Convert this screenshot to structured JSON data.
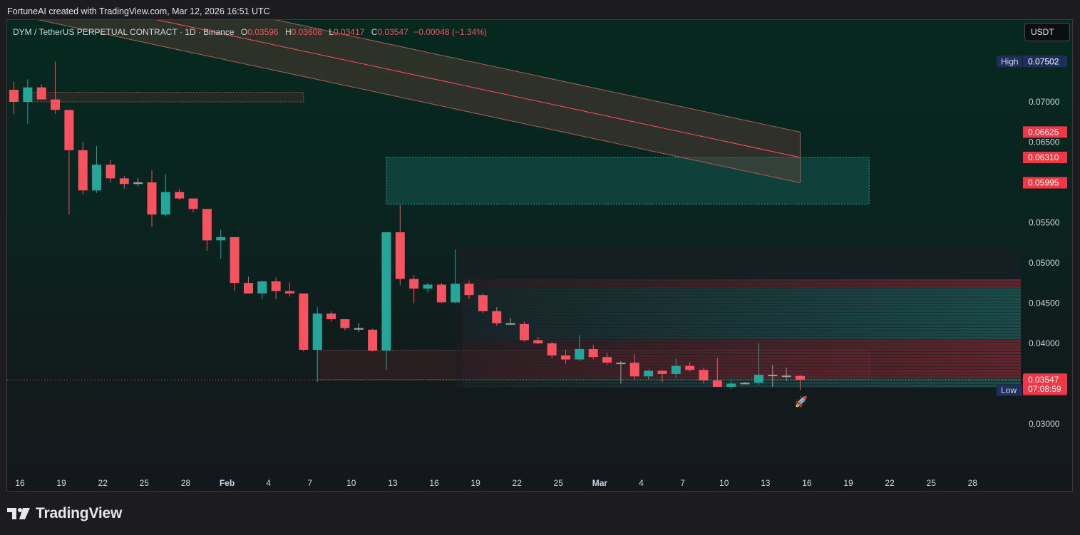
{
  "attribution": "FortuneAI created with TradingView.com, Mar 12, 2026 16:51 UTC",
  "header": {
    "symbol": "DYM / TetherUS PERPETUAL CONTRACT · 1D · Binance",
    "open_label": "O",
    "open": "0.03596",
    "high_label": "H",
    "high": "0.03608",
    "low_label": "L",
    "low": "0.03417",
    "close_label": "C",
    "close": "0.03547",
    "change": "−0.00048 (−1.34%)"
  },
  "currency_button": "USDT",
  "price_axis": {
    "ticks": [
      "0.07000",
      "0.06500",
      "0.05500",
      "0.05000",
      "0.04500",
      "0.04000",
      "0.03000"
    ],
    "tick_values": [
      0.07,
      0.065,
      0.055,
      0.05,
      0.045,
      0.04,
      0.03
    ],
    "high_tag": {
      "label": "High",
      "value": "0.07502",
      "price": 0.07502
    },
    "low_tag": {
      "label": "Low",
      "value": "0.03417",
      "price": 0.03417
    },
    "level_tags": [
      {
        "value": "0.06625",
        "price": 0.06625
      },
      {
        "value": "0.06310",
        "price": 0.0631
      },
      {
        "value": "0.05995",
        "price": 0.05995
      }
    ],
    "last_price": {
      "value": "0.03547",
      "countdown": "07:08:59",
      "price": 0.03547
    }
  },
  "time_axis": [
    "16",
    "19",
    "22",
    "25",
    "28",
    "Feb",
    "4",
    "7",
    "10",
    "13",
    "16",
    "19",
    "22",
    "25",
    "Mar",
    "4",
    "7",
    "10",
    "13",
    "16",
    "19",
    "22",
    "25",
    "28"
  ],
  "colors": {
    "up": "#26a69a",
    "down": "#f7525f",
    "tag_red": "#f23645",
    "tag_navy": "#1e2f5e"
  },
  "chart_data": {
    "type": "candlestick",
    "symbol": "DYMUSDT.P",
    "interval": "1D",
    "candles": [
      {
        "d": "Jan 14",
        "o": 0.0715,
        "h": 0.0725,
        "l": 0.0685,
        "c": 0.07
      },
      {
        "d": "Jan 15",
        "o": 0.07,
        "h": 0.0728,
        "l": 0.0673,
        "c": 0.0718
      },
      {
        "d": "Jan 16",
        "o": 0.0718,
        "h": 0.0722,
        "l": 0.0703,
        "c": 0.0703
      },
      {
        "d": "Jan 17",
        "o": 0.0703,
        "h": 0.075,
        "l": 0.0685,
        "c": 0.069
      },
      {
        "d": "Jan 18",
        "o": 0.069,
        "h": 0.069,
        "l": 0.056,
        "c": 0.064
      },
      {
        "d": "Jan 19",
        "o": 0.064,
        "h": 0.065,
        "l": 0.0585,
        "c": 0.059
      },
      {
        "d": "Jan 20",
        "o": 0.059,
        "h": 0.0645,
        "l": 0.0587,
        "c": 0.0622
      },
      {
        "d": "Jan 21",
        "o": 0.0622,
        "h": 0.0628,
        "l": 0.06,
        "c": 0.0605
      },
      {
        "d": "Jan 22",
        "o": 0.0605,
        "h": 0.0608,
        "l": 0.0592,
        "c": 0.0598
      },
      {
        "d": "Jan 23",
        "o": 0.0598,
        "h": 0.0605,
        "l": 0.0595,
        "c": 0.06
      },
      {
        "d": "Jan 24",
        "o": 0.06,
        "h": 0.0615,
        "l": 0.0545,
        "c": 0.056
      },
      {
        "d": "Jan 25",
        "o": 0.056,
        "h": 0.061,
        "l": 0.0558,
        "c": 0.0588
      },
      {
        "d": "Jan 26",
        "o": 0.0588,
        "h": 0.0592,
        "l": 0.0578,
        "c": 0.058
      },
      {
        "d": "Jan 27",
        "o": 0.058,
        "h": 0.058,
        "l": 0.0563,
        "c": 0.0567
      },
      {
        "d": "Jan 28",
        "o": 0.0567,
        "h": 0.0567,
        "l": 0.0515,
        "c": 0.0528
      },
      {
        "d": "Jan 29",
        "o": 0.0528,
        "h": 0.0541,
        "l": 0.0505,
        "c": 0.0532
      },
      {
        "d": "Jan 30",
        "o": 0.0532,
        "h": 0.0532,
        "l": 0.0465,
        "c": 0.0475
      },
      {
        "d": "Jan 31",
        "o": 0.0475,
        "h": 0.0483,
        "l": 0.0462,
        "c": 0.0462
      },
      {
        "d": "Feb 1",
        "o": 0.0462,
        "h": 0.0478,
        "l": 0.0455,
        "c": 0.0477
      },
      {
        "d": "Feb 2",
        "o": 0.0477,
        "h": 0.0482,
        "l": 0.0455,
        "c": 0.0465
      },
      {
        "d": "Feb 3",
        "o": 0.0465,
        "h": 0.0476,
        "l": 0.0458,
        "c": 0.0462
      },
      {
        "d": "Feb 4",
        "o": 0.0462,
        "h": 0.0462,
        "l": 0.039,
        "c": 0.0392
      },
      {
        "d": "Feb 5",
        "o": 0.0392,
        "h": 0.0445,
        "l": 0.0352,
        "c": 0.0437
      },
      {
        "d": "Feb 6",
        "o": 0.0437,
        "h": 0.044,
        "l": 0.0427,
        "c": 0.043
      },
      {
        "d": "Feb 7",
        "o": 0.043,
        "h": 0.043,
        "l": 0.0416,
        "c": 0.0419
      },
      {
        "d": "Feb 8",
        "o": 0.0419,
        "h": 0.0425,
        "l": 0.0414,
        "c": 0.0417
      },
      {
        "d": "Feb 9",
        "o": 0.0417,
        "h": 0.0418,
        "l": 0.039,
        "c": 0.0391
      },
      {
        "d": "Feb 10",
        "o": 0.0391,
        "h": 0.0538,
        "l": 0.0367,
        "c": 0.0538
      },
      {
        "d": "Feb 11",
        "o": 0.0538,
        "h": 0.0572,
        "l": 0.0472,
        "c": 0.048
      },
      {
        "d": "Feb 12",
        "o": 0.048,
        "h": 0.0485,
        "l": 0.045,
        "c": 0.0468
      },
      {
        "d": "Feb 13",
        "o": 0.0468,
        "h": 0.0475,
        "l": 0.0463,
        "c": 0.0473
      },
      {
        "d": "Feb 14",
        "o": 0.0473,
        "h": 0.0475,
        "l": 0.045,
        "c": 0.0451
      },
      {
        "d": "Feb 15",
        "o": 0.0451,
        "h": 0.0517,
        "l": 0.045,
        "c": 0.0474
      },
      {
        "d": "Feb 16",
        "o": 0.0474,
        "h": 0.0478,
        "l": 0.0455,
        "c": 0.046
      },
      {
        "d": "Feb 17",
        "o": 0.046,
        "h": 0.0462,
        "l": 0.0438,
        "c": 0.044
      },
      {
        "d": "Feb 18",
        "o": 0.044,
        "h": 0.0445,
        "l": 0.0422,
        "c": 0.0425
      },
      {
        "d": "Feb 19",
        "o": 0.0425,
        "h": 0.0432,
        "l": 0.0423,
        "c": 0.0424
      },
      {
        "d": "Feb 20",
        "o": 0.0424,
        "h": 0.0427,
        "l": 0.0402,
        "c": 0.0404
      },
      {
        "d": "Feb 21",
        "o": 0.0404,
        "h": 0.0408,
        "l": 0.0399,
        "c": 0.04
      },
      {
        "d": "Feb 22",
        "o": 0.04,
        "h": 0.0402,
        "l": 0.0382,
        "c": 0.0385
      },
      {
        "d": "Feb 23",
        "o": 0.0385,
        "h": 0.0392,
        "l": 0.0375,
        "c": 0.038
      },
      {
        "d": "Feb 24",
        "o": 0.038,
        "h": 0.041,
        "l": 0.0378,
        "c": 0.0393
      },
      {
        "d": "Feb 25",
        "o": 0.0393,
        "h": 0.0398,
        "l": 0.038,
        "c": 0.0383
      },
      {
        "d": "Feb 26",
        "o": 0.0383,
        "h": 0.0388,
        "l": 0.0373,
        "c": 0.0376
      },
      {
        "d": "Feb 27",
        "o": 0.0376,
        "h": 0.0378,
        "l": 0.035,
        "c": 0.0376
      },
      {
        "d": "Feb 28",
        "o": 0.0376,
        "h": 0.0387,
        "l": 0.0355,
        "c": 0.0359
      },
      {
        "d": "Mar 1",
        "o": 0.0359,
        "h": 0.0367,
        "l": 0.0355,
        "c": 0.0366
      },
      {
        "d": "Mar 2",
        "o": 0.0366,
        "h": 0.0367,
        "l": 0.0352,
        "c": 0.0362
      },
      {
        "d": "Mar 3",
        "o": 0.0362,
        "h": 0.0381,
        "l": 0.0357,
        "c": 0.0372
      },
      {
        "d": "Mar 4",
        "o": 0.0372,
        "h": 0.0377,
        "l": 0.0365,
        "c": 0.0367
      },
      {
        "d": "Mar 5",
        "o": 0.0367,
        "h": 0.037,
        "l": 0.035,
        "c": 0.0354
      },
      {
        "d": "Mar 6",
        "o": 0.0354,
        "h": 0.0382,
        "l": 0.0346,
        "c": 0.0346
      },
      {
        "d": "Mar 7",
        "o": 0.0346,
        "h": 0.0354,
        "l": 0.0343,
        "c": 0.035
      },
      {
        "d": "Mar 8",
        "o": 0.035,
        "h": 0.0352,
        "l": 0.0349,
        "c": 0.0351
      },
      {
        "d": "Mar 9",
        "o": 0.0351,
        "h": 0.04,
        "l": 0.0348,
        "c": 0.0361
      },
      {
        "d": "Mar 10",
        "o": 0.0361,
        "h": 0.0373,
        "l": 0.0346,
        "c": 0.036
      },
      {
        "d": "Mar 11",
        "o": 0.036,
        "h": 0.037,
        "l": 0.0353,
        "c": 0.0359
      },
      {
        "d": "Mar 12",
        "o": 0.03596,
        "h": 0.03608,
        "l": 0.03417,
        "c": 0.03547
      }
    ],
    "zones": [
      {
        "kind": "resistance",
        "from": "Jan 15",
        "to": "Feb 4",
        "top": 0.0712,
        "bottom": 0.07
      },
      {
        "kind": "supply",
        "from": "Feb 10",
        "to": "Mar 16",
        "top": 0.0631,
        "bottom": 0.0573
      },
      {
        "kind": "demand",
        "from": "Feb 5",
        "to": "Mar 16",
        "top": 0.0391,
        "bottom": 0.0355
      },
      {
        "kind": "volume-profile",
        "from": "Feb 15",
        "to": "Mar 28",
        "top": 0.0517,
        "bottom": 0.0345
      }
    ],
    "regression_channel": {
      "from": "Jan 14",
      "to": "Mar 12",
      "mid_start": 0.084,
      "mid_end": 0.0631,
      "upper_end": 0.06625,
      "lower_end": 0.05995
    }
  }
}
